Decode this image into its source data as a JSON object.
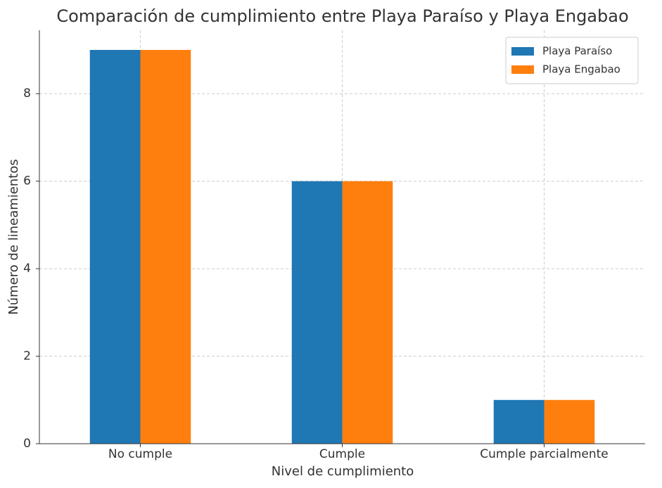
{
  "chart_data": {
    "type": "bar",
    "title": "Comparación de cumplimiento entre Playa Paraíso y Playa Engabao",
    "x_label": "Nivel de cumplimiento",
    "y_label": "Número de lineamientos",
    "categories": [
      "No cumple",
      "Cumple",
      "Cumple parcialmente"
    ],
    "series": [
      {
        "name": "Playa Paraíso",
        "color": "#1f77b4",
        "values": [
          9,
          6,
          1
        ]
      },
      {
        "name": "Playa Engabao",
        "color": "#ff7f0e",
        "values": [
          9,
          6,
          1
        ]
      }
    ],
    "ylim": [
      0,
      9.45
    ],
    "yticks": [
      0,
      2,
      4,
      6,
      8
    ],
    "grid": true,
    "legend": "upper right"
  }
}
